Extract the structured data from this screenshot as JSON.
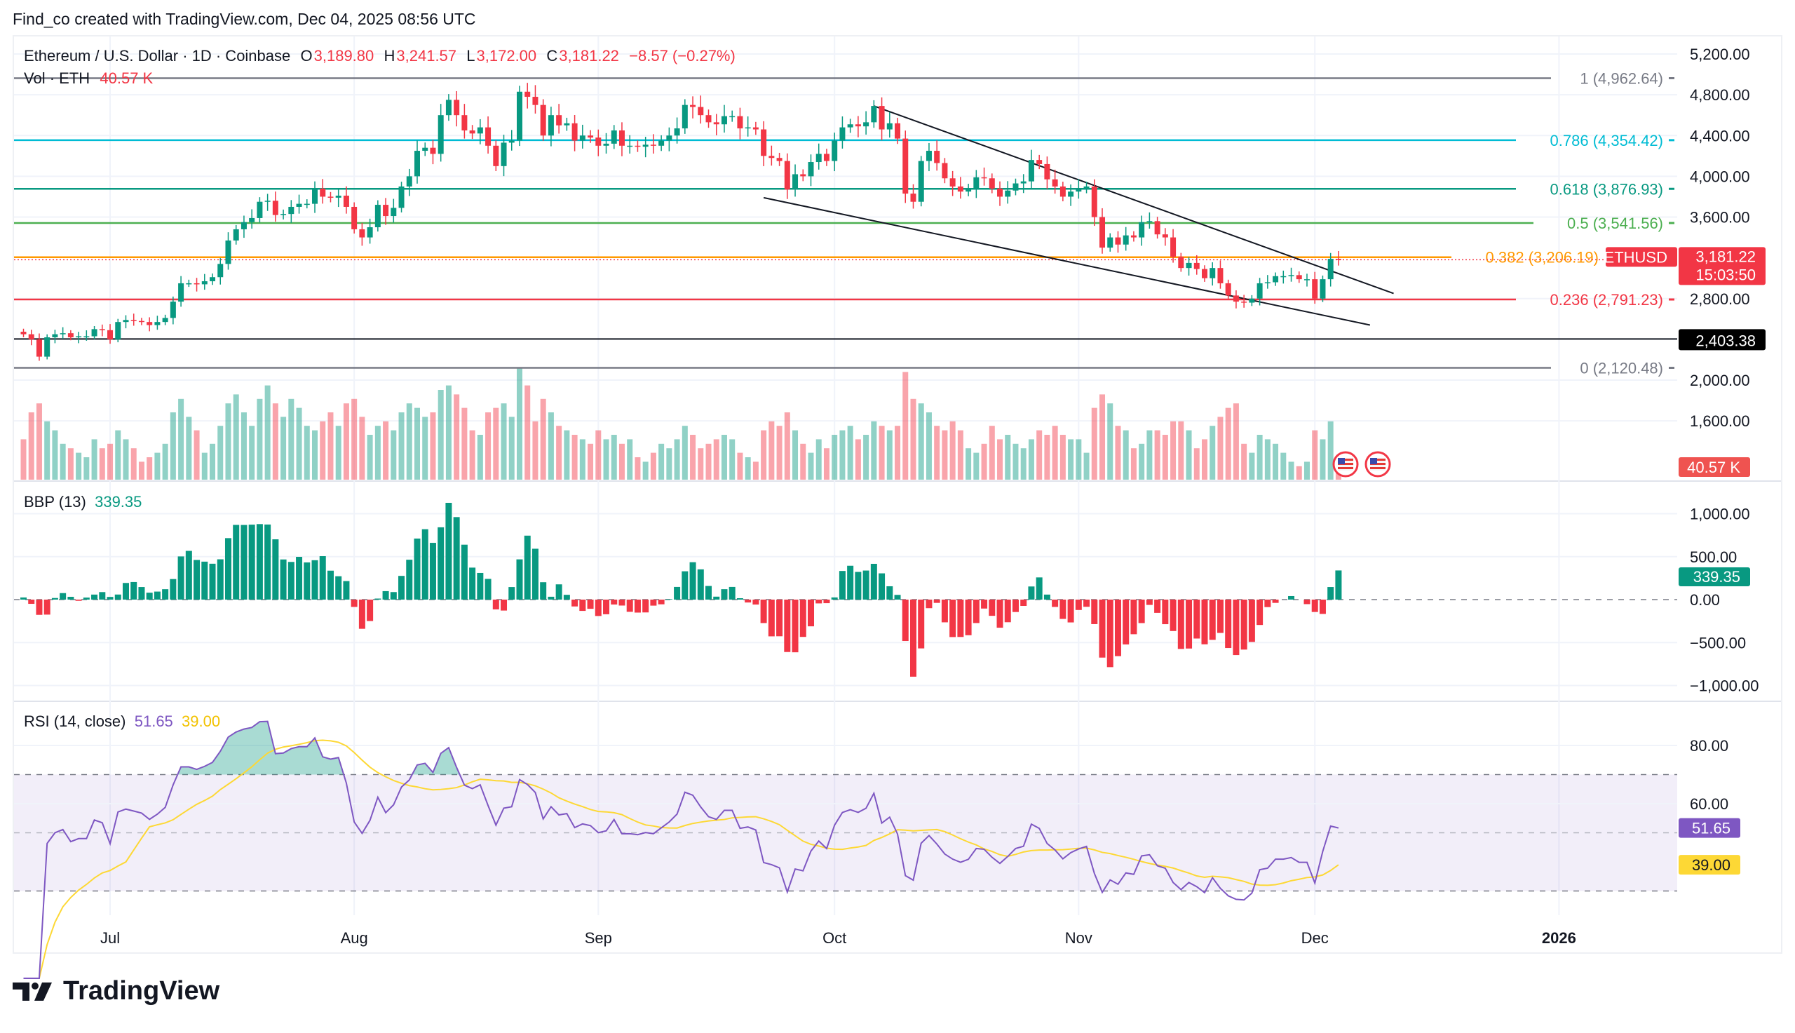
{
  "caption": "Find_co created with TradingView.com, Dec 04, 2025 08:56 UTC",
  "legend": {
    "symbol": "Ethereum / U.S. Dollar · 1D · Coinbase",
    "open_label": "O",
    "open": "3,189.80",
    "high_label": "H",
    "high": "3,241.57",
    "low_label": "L",
    "low": "3,172.00",
    "close_label": "C",
    "close": "3,181.22",
    "change": "−8.57 (−0.27%)",
    "vol_label": "Vol · ETH",
    "vol": "40.57 K"
  },
  "bbp_legend": {
    "label": "BBP (13)",
    "value": "339.35"
  },
  "rsi_legend": {
    "label": "RSI (14, close)",
    "rsi": "51.65",
    "ma": "39.00"
  },
  "badges": {
    "symbol": "ETHUSD",
    "price": "3,181.22",
    "countdown": "15:03:50",
    "hline": "2,403.38",
    "volume": "40.57 K",
    "bbp": "339.35",
    "rsi": "51.65",
    "rsi_ma": "39.00"
  },
  "colors": {
    "up": "#089981",
    "down": "#f23645",
    "rsi": "#7e57c2",
    "rsi_ma": "#fdd835",
    "bbp_up": "#089981",
    "bbp_down": "#f23645"
  },
  "footer": {
    "brand": "TradingView",
    "icon": "tradingview-logo-icon"
  },
  "chart_data": [
    {
      "type": "candlestick",
      "symbol": "ETHUSD",
      "interval": "1D",
      "first_date": "2025-06-20",
      "last_date": "2025-12-04",
      "closes": [
        2450,
        2400,
        2230,
        2420,
        2450,
        2460,
        2420,
        2430,
        2430,
        2500,
        2490,
        2400,
        2570,
        2590,
        2580,
        2570,
        2540,
        2570,
        2610,
        2770,
        2950,
        2950,
        2940,
        2970,
        3010,
        3140,
        3370,
        3480,
        3550,
        3590,
        3750,
        3760,
        3620,
        3630,
        3700,
        3730,
        3730,
        3880,
        3800,
        3790,
        3810,
        3700,
        3480,
        3400,
        3500,
        3720,
        3610,
        3690,
        3900,
        4000,
        4250,
        4280,
        4220,
        4600,
        4750,
        4600,
        4450,
        4420,
        4480,
        4300,
        4100,
        4330,
        4350,
        4830,
        4780,
        4700,
        4400,
        4600,
        4500,
        4520,
        4350,
        4400,
        4380,
        4300,
        4320,
        4450,
        4300,
        4300,
        4290,
        4310,
        4300,
        4350,
        4400,
        4470,
        4700,
        4680,
        4600,
        4530,
        4510,
        4590,
        4590,
        4470,
        4480,
        4460,
        4200,
        4180,
        4150,
        3870,
        4020,
        4000,
        4140,
        4220,
        4150,
        4350,
        4480,
        4510,
        4490,
        4530,
        4690,
        4460,
        4520,
        4370,
        3830,
        3750,
        4150,
        4250,
        4130,
        3980,
        3900,
        3850,
        3880,
        3990,
        3980,
        3880,
        3800,
        3860,
        3930,
        3950,
        4160,
        4120,
        3970,
        3900,
        3800,
        3850,
        3880,
        3900,
        3600,
        3300,
        3400,
        3330,
        3420,
        3400,
        3550,
        3560,
        3430,
        3400,
        3210,
        3100,
        3150,
        3090,
        3000,
        3100,
        2950,
        2830,
        2770,
        2760,
        2800,
        2950,
        2960,
        3020,
        3020,
        3030,
        2990,
        2990,
        2800,
        2990,
        3190,
        3181.22
      ],
      "volume_k": [
        90,
        150,
        170,
        130,
        110,
        80,
        70,
        60,
        50,
        90,
        70,
        80,
        110,
        90,
        70,
        40,
        50,
        60,
        80,
        150,
        180,
        140,
        110,
        60,
        80,
        120,
        170,
        190,
        150,
        120,
        180,
        210,
        170,
        140,
        180,
        160,
        120,
        110,
        130,
        150,
        120,
        170,
        180,
        140,
        100,
        120,
        130,
        110,
        150,
        170,
        160,
        140,
        150,
        200,
        210,
        190,
        160,
        110,
        100,
        150,
        160,
        170,
        140,
        250,
        210,
        130,
        180,
        150,
        120,
        110,
        100,
        90,
        80,
        110,
        90,
        100,
        80,
        90,
        50,
        40,
        60,
        80,
        70,
        90,
        120,
        100,
        70,
        80,
        90,
        100,
        90,
        60,
        50,
        40,
        110,
        130,
        120,
        150,
        110,
        80,
        60,
        90,
        70,
        100,
        110,
        120,
        90,
        100,
        130,
        120,
        110,
        120,
        240,
        180,
        170,
        150,
        120,
        110,
        130,
        110,
        70,
        60,
        80,
        120,
        90,
        100,
        80,
        70,
        90,
        110,
        100,
        120,
        100,
        90,
        90,
        60,
        160,
        190,
        170,
        120,
        110,
        70,
        80,
        110,
        110,
        100,
        130,
        130,
        110,
        70,
        90,
        120,
        140,
        160,
        170,
        80,
        60,
        100,
        90,
        80,
        60,
        40,
        30,
        40,
        110,
        90,
        130,
        40.57
      ],
      "price_axis": {
        "ylim": [
          1800,
          5300
        ],
        "ticks": [
          "5,200.00",
          "4,800.00",
          "4,400.00",
          "4,000.00",
          "3,600.00",
          "2,800.00",
          "2,000.00",
          "1,600.00"
        ],
        "tick_values": [
          5200,
          4800,
          4400,
          4000,
          3600,
          2800,
          2000,
          1600
        ]
      },
      "time_axis": {
        "ticks": [
          {
            "label": "Jul",
            "date": "2025-07-01"
          },
          {
            "label": "Aug",
            "date": "2025-08-01"
          },
          {
            "label": "Sep",
            "date": "2025-09-01"
          },
          {
            "label": "Oct",
            "date": "2025-10-01"
          },
          {
            "label": "Nov",
            "date": "2025-11-01"
          },
          {
            "label": "Dec",
            "date": "2025-12-01"
          },
          {
            "label": "2026",
            "date": "2026-01-01"
          }
        ]
      },
      "fib_levels": [
        {
          "ratio": 1,
          "price": 4962.64,
          "label": "1 (4,962.64)",
          "color": "#787b86"
        },
        {
          "ratio": 0.786,
          "price": 4354.42,
          "label": "0.786 (4,354.42)",
          "color": "#00bcd4"
        },
        {
          "ratio": 0.618,
          "price": 3876.93,
          "label": "0.618 (3,876.93)",
          "color": "#089981"
        },
        {
          "ratio": 0.5,
          "price": 3541.56,
          "label": "0.5 (3,541.56)",
          "color": "#4caf50"
        },
        {
          "ratio": 0.382,
          "price": 3206.19,
          "label": "0.382 (3,206.19)",
          "color": "#ff9800"
        },
        {
          "ratio": 0.236,
          "price": 2791.23,
          "label": "0.236 (2,791.23)",
          "color": "#f23645"
        },
        {
          "ratio": 0,
          "price": 2120.48,
          "label": "0 (2,120.48)",
          "color": "#787b86"
        }
      ],
      "horizontal_line": 2403.38,
      "trend_lines": [
        {
          "from": {
            "date": "2025-10-06",
            "price": 4690
          },
          "to": {
            "date": "2025-12-11",
            "price": 2850
          }
        },
        {
          "from": {
            "date": "2025-09-22",
            "price": 3790
          },
          "to": {
            "date": "2025-12-08",
            "price": 2540
          }
        }
      ]
    },
    {
      "type": "bar",
      "name": "BBP (13)",
      "last_value": 339.35,
      "ylim": [
        -1150,
        1250
      ],
      "ticks": [
        "1,000.00",
        "500.00",
        "0.00",
        "−500.00",
        "−1,000.00"
      ],
      "tick_values": [
        1000,
        500,
        0,
        -500,
        -1000
      ]
    },
    {
      "type": "line",
      "name": "RSI (14, close)",
      "last_rsi": 51.65,
      "last_ma": 39.0,
      "bands": [
        70,
        50,
        30
      ],
      "ticks": [
        "80.00",
        "60.00"
      ],
      "tick_values": [
        80,
        60
      ]
    }
  ]
}
